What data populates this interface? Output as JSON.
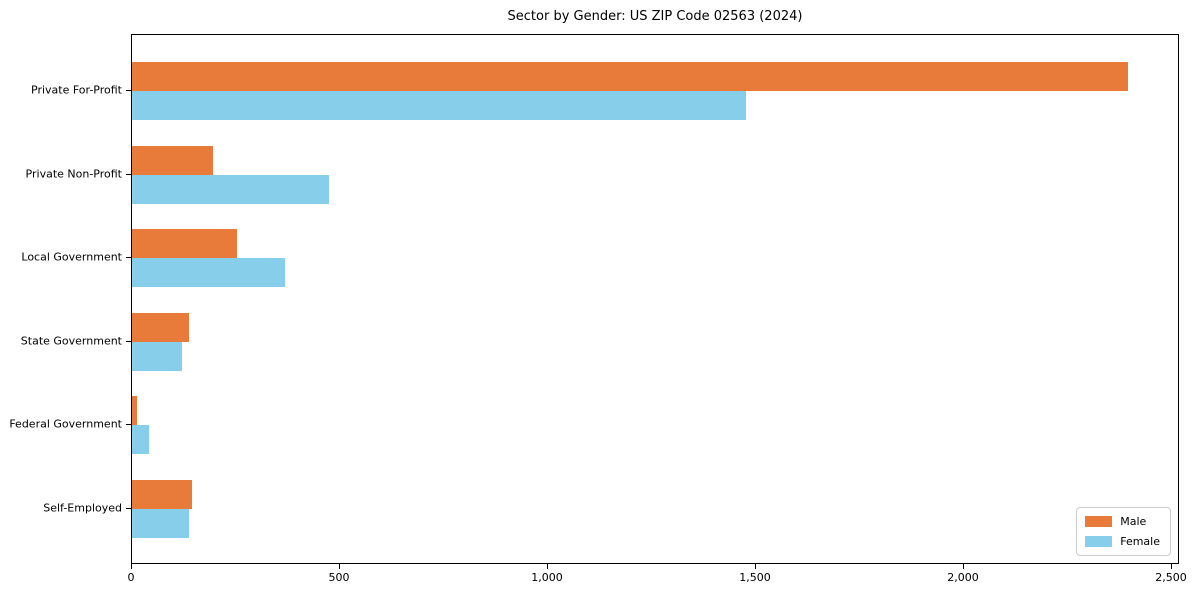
{
  "title": "Sector by Gender: US ZIP Code 02563 (2024)",
  "chart_data": {
    "type": "bar",
    "orientation": "horizontal",
    "title": "Sector by Gender: US ZIP Code 02563 (2024)",
    "categories": [
      "Private For-Profit",
      "Private Non-Profit",
      "Local Government",
      "State Government",
      "Federal Government",
      "Self-Employed"
    ],
    "series": [
      {
        "name": "Male",
        "color": "#e87b3a",
        "values": [
          2396,
          194,
          253,
          138,
          12,
          144
        ]
      },
      {
        "name": "Female",
        "color": "#87ceeb",
        "values": [
          1477,
          474,
          369,
          120,
          40,
          136
        ]
      }
    ],
    "xlabel": "",
    "ylabel": "",
    "xlim": [
      0,
      2520
    ],
    "xticks": [
      0,
      500,
      1000,
      1500,
      2000,
      2500
    ],
    "xtick_labels": [
      "0",
      "500",
      "1,000",
      "1,500",
      "2,000",
      "2,500"
    ],
    "grid": false,
    "legend_position": "lower right"
  }
}
